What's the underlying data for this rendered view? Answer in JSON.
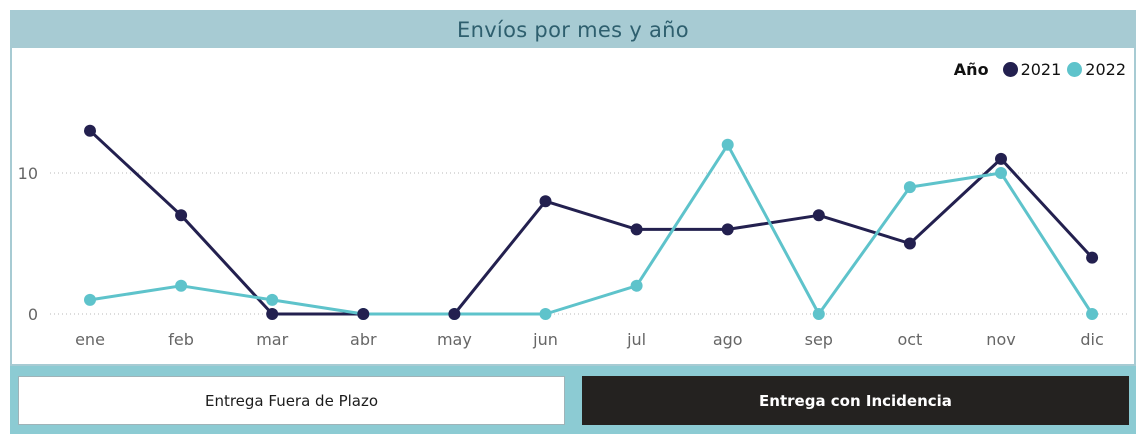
{
  "title": "Envíos por mes y año",
  "legend": {
    "title": "Año",
    "items": [
      {
        "label": "2021",
        "color": "#23204f"
      },
      {
        "label": "2022",
        "color": "#5ec3cb"
      }
    ]
  },
  "buttons": {
    "left_label": "Entrega Fuera de Plazo",
    "right_label": "Entrega con Incidencia"
  },
  "chart_data": {
    "type": "line",
    "title": "Envíos por mes y año",
    "categories": [
      "ene",
      "feb",
      "mar",
      "abr",
      "may",
      "jun",
      "jul",
      "ago",
      "sep",
      "oct",
      "nov",
      "dic"
    ],
    "series": [
      {
        "name": "2021",
        "color": "#23204f",
        "values": [
          13,
          7,
          0,
          0,
          0,
          8,
          6,
          6,
          7,
          5,
          11,
          4
        ]
      },
      {
        "name": "2022",
        "color": "#5ec3cb",
        "values": [
          1,
          2,
          1,
          0,
          0,
          0,
          2,
          12,
          0,
          9,
          10,
          0
        ]
      }
    ],
    "yticks": [
      0,
      10
    ],
    "ylim": [
      0,
      14
    ],
    "grid": "horizontal dotted",
    "legend_position": "top-right"
  }
}
